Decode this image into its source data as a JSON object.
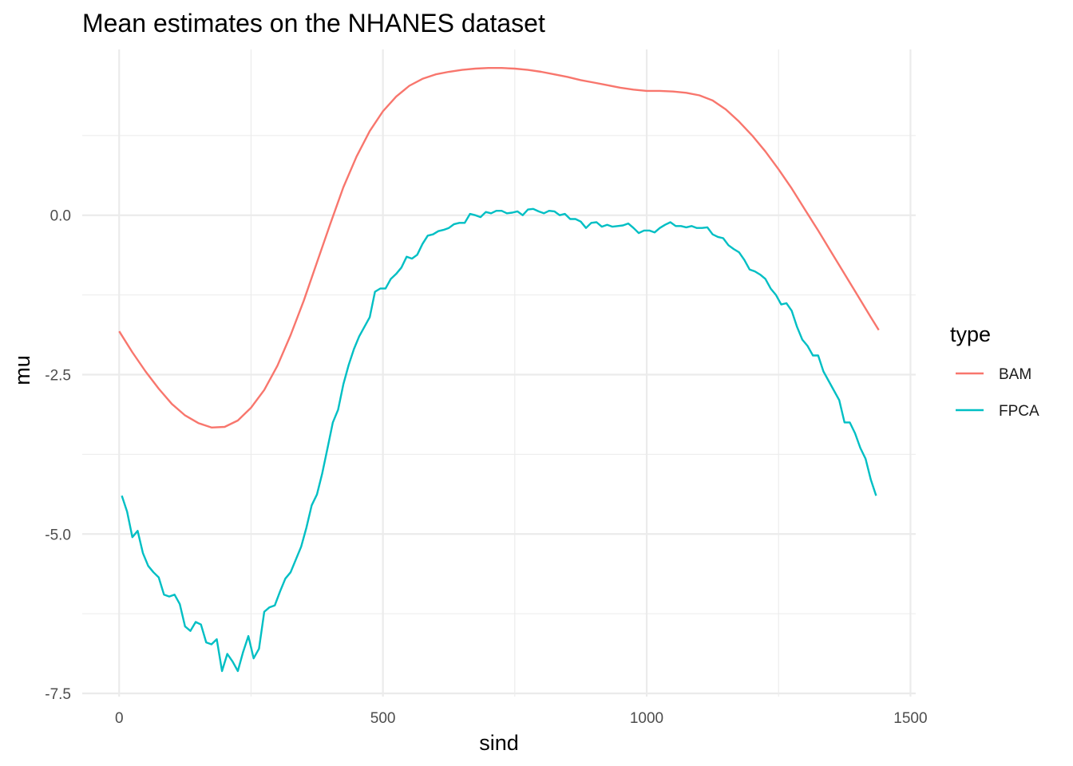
{
  "chart_data": {
    "type": "line",
    "title": "Mean estimates on the NHANES dataset",
    "xlabel": "sind",
    "ylabel": "mu",
    "xlim": [
      -70,
      1510
    ],
    "ylim": [
      -7.55,
      2.6
    ],
    "x_ticks": [
      0,
      500,
      1000,
      1500
    ],
    "x_tick_labels": [
      "0",
      "500",
      "1000",
      "1500"
    ],
    "y_ticks": [
      -7.5,
      -5.0,
      -2.5,
      0.0
    ],
    "y_tick_labels": [
      "-7.5",
      "-5.0",
      "-2.5",
      "0.0"
    ],
    "grid": true,
    "legend": {
      "title": "type",
      "position": "right"
    },
    "series": [
      {
        "name": "BAM",
        "color": "#F8766D",
        "x": [
          0,
          25,
          50,
          75,
          100,
          125,
          150,
          175,
          200,
          225,
          250,
          275,
          300,
          325,
          350,
          375,
          400,
          425,
          450,
          475,
          500,
          525,
          550,
          575,
          600,
          625,
          650,
          675,
          700,
          725,
          750,
          775,
          800,
          825,
          850,
          875,
          900,
          925,
          950,
          975,
          1000,
          1025,
          1050,
          1075,
          1100,
          1125,
          1150,
          1175,
          1200,
          1225,
          1250,
          1275,
          1300,
          1325,
          1350,
          1375,
          1400,
          1425,
          1440
        ],
        "y": [
          -1.82,
          -2.15,
          -2.45,
          -2.72,
          -2.96,
          -3.14,
          -3.26,
          -3.33,
          -3.32,
          -3.22,
          -3.02,
          -2.74,
          -2.36,
          -1.88,
          -1.34,
          -0.74,
          -0.14,
          0.44,
          0.92,
          1.32,
          1.63,
          1.86,
          2.03,
          2.14,
          2.21,
          2.25,
          2.28,
          2.3,
          2.31,
          2.31,
          2.3,
          2.28,
          2.25,
          2.21,
          2.17,
          2.12,
          2.08,
          2.04,
          2.0,
          1.97,
          1.95,
          1.95,
          1.94,
          1.92,
          1.88,
          1.8,
          1.66,
          1.47,
          1.25,
          1.0,
          0.72,
          0.42,
          0.09,
          -0.24,
          -0.58,
          -0.92,
          -1.26,
          -1.6,
          -1.8
        ]
      },
      {
        "name": "FPCA",
        "color": "#00BFC4",
        "x": [
          5,
          15,
          25,
          35,
          45,
          55,
          65,
          75,
          85,
          95,
          105,
          115,
          125,
          135,
          145,
          155,
          165,
          175,
          185,
          195,
          205,
          215,
          225,
          235,
          245,
          255,
          265,
          275,
          285,
          295,
          305,
          315,
          325,
          335,
          345,
          355,
          365,
          375,
          385,
          395,
          405,
          415,
          425,
          435,
          445,
          455,
          465,
          475,
          485,
          495,
          505,
          515,
          525,
          535,
          545,
          555,
          565,
          575,
          585,
          595,
          605,
          615,
          625,
          635,
          645,
          655,
          665,
          675,
          685,
          695,
          705,
          715,
          725,
          735,
          745,
          755,
          765,
          775,
          785,
          795,
          805,
          815,
          825,
          835,
          845,
          855,
          865,
          875,
          885,
          895,
          905,
          915,
          925,
          935,
          945,
          955,
          965,
          975,
          985,
          995,
          1005,
          1015,
          1025,
          1035,
          1045,
          1055,
          1065,
          1075,
          1085,
          1095,
          1105,
          1115,
          1125,
          1135,
          1145,
          1155,
          1165,
          1175,
          1185,
          1195,
          1205,
          1215,
          1225,
          1235,
          1245,
          1255,
          1265,
          1275,
          1285,
          1295,
          1305,
          1315,
          1325,
          1335,
          1345,
          1355,
          1365,
          1375,
          1385,
          1395,
          1405,
          1415,
          1425,
          1435
        ],
        "y": [
          -4.4,
          -4.65,
          -5.05,
          -4.95,
          -5.3,
          -5.5,
          -5.6,
          -5.68,
          -5.95,
          -5.98,
          -5.95,
          -6.1,
          -6.45,
          -6.52,
          -6.38,
          -6.42,
          -6.7,
          -6.73,
          -6.65,
          -7.15,
          -6.88,
          -7.0,
          -7.15,
          -6.85,
          -6.6,
          -6.95,
          -6.8,
          -6.22,
          -6.15,
          -6.12,
          -5.9,
          -5.7,
          -5.6,
          -5.4,
          -5.2,
          -4.9,
          -4.55,
          -4.38,
          -4.05,
          -3.65,
          -3.25,
          -3.05,
          -2.65,
          -2.35,
          -2.1,
          -1.9,
          -1.75,
          -1.6,
          -1.2,
          -1.15,
          -1.15,
          -1.0,
          -0.92,
          -0.82,
          -0.65,
          -0.68,
          -0.62,
          -0.45,
          -0.32,
          -0.3,
          -0.25,
          -0.23,
          -0.2,
          -0.14,
          -0.12,
          -0.12,
          0.02,
          0.0,
          -0.03,
          0.05,
          0.03,
          0.07,
          0.07,
          0.03,
          0.04,
          0.06,
          0.0,
          0.09,
          0.1,
          0.06,
          0.03,
          0.07,
          0.06,
          0.0,
          0.02,
          -0.06,
          -0.06,
          -0.1,
          -0.2,
          -0.12,
          -0.11,
          -0.18,
          -0.15,
          -0.18,
          -0.17,
          -0.16,
          -0.13,
          -0.2,
          -0.28,
          -0.24,
          -0.24,
          -0.27,
          -0.2,
          -0.15,
          -0.11,
          -0.17,
          -0.17,
          -0.19,
          -0.17,
          -0.2,
          -0.2,
          -0.19,
          -0.3,
          -0.34,
          -0.36,
          -0.47,
          -0.53,
          -0.58,
          -0.7,
          -0.85,
          -0.88,
          -0.93,
          -1.0,
          -1.15,
          -1.25,
          -1.4,
          -1.38,
          -1.5,
          -1.75,
          -1.95,
          -2.05,
          -2.2,
          -2.2,
          -2.45,
          -2.6,
          -2.75,
          -2.9,
          -3.25,
          -3.25,
          -3.42,
          -3.65,
          -3.82,
          -4.15,
          -4.4
        ]
      }
    ]
  }
}
